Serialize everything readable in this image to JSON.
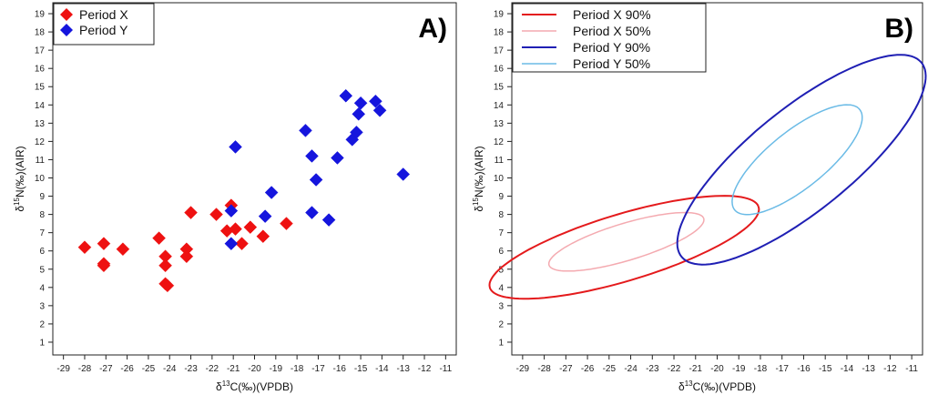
{
  "chart_data": [
    {
      "type": "scatter",
      "panel_label": "A)",
      "xlabel_parts": [
        "δ",
        "13",
        "C(‰)(VPDB)"
      ],
      "ylabel_parts": [
        "δ",
        "15",
        "N(‰)(AIR)"
      ],
      "xlim": [
        -29.5,
        -10.5
      ],
      "ylim": [
        0.3,
        19.6
      ],
      "xticks": [
        -29,
        -28,
        -27,
        -26,
        -25,
        -24,
        -23,
        -22,
        -21,
        -20,
        -19,
        -18,
        -17,
        -16,
        -15,
        -14,
        -13,
        -12,
        -11
      ],
      "yticks": [
        1,
        2,
        3,
        4,
        5,
        6,
        7,
        8,
        9,
        10,
        11,
        12,
        13,
        14,
        15,
        16,
        17,
        18,
        19
      ],
      "legend_position": "top-left",
      "series": [
        {
          "name": "Period X",
          "color": "#ee1111",
          "marker": "diamond",
          "points": [
            [
              -28.0,
              6.2
            ],
            [
              -27.1,
              6.4
            ],
            [
              -27.1,
              5.3
            ],
            [
              -27.1,
              5.2
            ],
            [
              -26.2,
              6.1
            ],
            [
              -24.5,
              6.7
            ],
            [
              -24.2,
              5.7
            ],
            [
              -24.2,
              5.2
            ],
            [
              -24.2,
              4.2
            ],
            [
              -24.1,
              4.1
            ],
            [
              -23.2,
              6.1
            ],
            [
              -23.2,
              5.7
            ],
            [
              -23.0,
              8.1
            ],
            [
              -21.8,
              8.0
            ],
            [
              -21.3,
              7.1
            ],
            [
              -21.1,
              8.5
            ],
            [
              -20.9,
              7.2
            ],
            [
              -20.6,
              6.4
            ],
            [
              -20.2,
              7.3
            ],
            [
              -19.6,
              6.8
            ],
            [
              -18.5,
              7.5
            ]
          ]
        },
        {
          "name": "Period Y",
          "color": "#1515dd",
          "marker": "diamond",
          "points": [
            [
              -21.1,
              8.2
            ],
            [
              -21.1,
              6.4
            ],
            [
              -20.9,
              11.7
            ],
            [
              -19.5,
              7.9
            ],
            [
              -19.2,
              9.2
            ],
            [
              -17.6,
              12.6
            ],
            [
              -17.3,
              11.2
            ],
            [
              -17.3,
              8.1
            ],
            [
              -17.1,
              9.9
            ],
            [
              -16.5,
              7.7
            ],
            [
              -16.1,
              11.1
            ],
            [
              -15.7,
              14.5
            ],
            [
              -15.4,
              12.1
            ],
            [
              -15.2,
              12.5
            ],
            [
              -15.1,
              13.5
            ],
            [
              -15.0,
              14.1
            ],
            [
              -14.3,
              14.2
            ],
            [
              -14.1,
              13.7
            ],
            [
              -13.0,
              10.2
            ]
          ]
        }
      ]
    },
    {
      "type": "ellipse",
      "panel_label": "B)",
      "xlabel_parts": [
        "δ",
        "13",
        "C(‰)(VPDB)"
      ],
      "ylabel_parts": [
        "δ",
        "15",
        "N(‰)(AIR)"
      ],
      "xlim": [
        -29.5,
        -10.5
      ],
      "ylim": [
        0.3,
        19.6
      ],
      "xticks": [
        -29,
        -28,
        -27,
        -26,
        -25,
        -24,
        -23,
        -22,
        -21,
        -20,
        -19,
        -18,
        -17,
        -16,
        -15,
        -14,
        -13,
        -12,
        -11
      ],
      "yticks": [
        1,
        2,
        3,
        4,
        5,
        6,
        7,
        8,
        9,
        10,
        11,
        12,
        13,
        14,
        15,
        16,
        17,
        18,
        19
      ],
      "legend_position": "top-left",
      "series": [
        {
          "name": "Period X 90%",
          "color": "#e41a1c",
          "stroke_weight": "bold",
          "ellipse": {
            "cx": -24.3,
            "cy": 6.2,
            "a": 6.6,
            "b": 1.8,
            "angle_deg": 20
          }
        },
        {
          "name": "Period X 50%",
          "color": "#f4aab0",
          "stroke_weight": "thin",
          "ellipse": {
            "cx": -24.2,
            "cy": 6.5,
            "a": 3.8,
            "b": 1.0,
            "angle_deg": 20
          }
        },
        {
          "name": "Period Y 90%",
          "color": "#1f1fb4",
          "stroke_weight": "bold",
          "ellipse": {
            "cx": -16.1,
            "cy": 11.0,
            "a": 7.7,
            "b": 2.6,
            "angle_deg": 45
          }
        },
        {
          "name": "Period Y 50%",
          "color": "#6bbbe6",
          "stroke_weight": "thin",
          "ellipse": {
            "cx": -16.3,
            "cy": 11.0,
            "a": 4.0,
            "b": 1.45,
            "angle_deg": 45
          }
        }
      ]
    }
  ]
}
